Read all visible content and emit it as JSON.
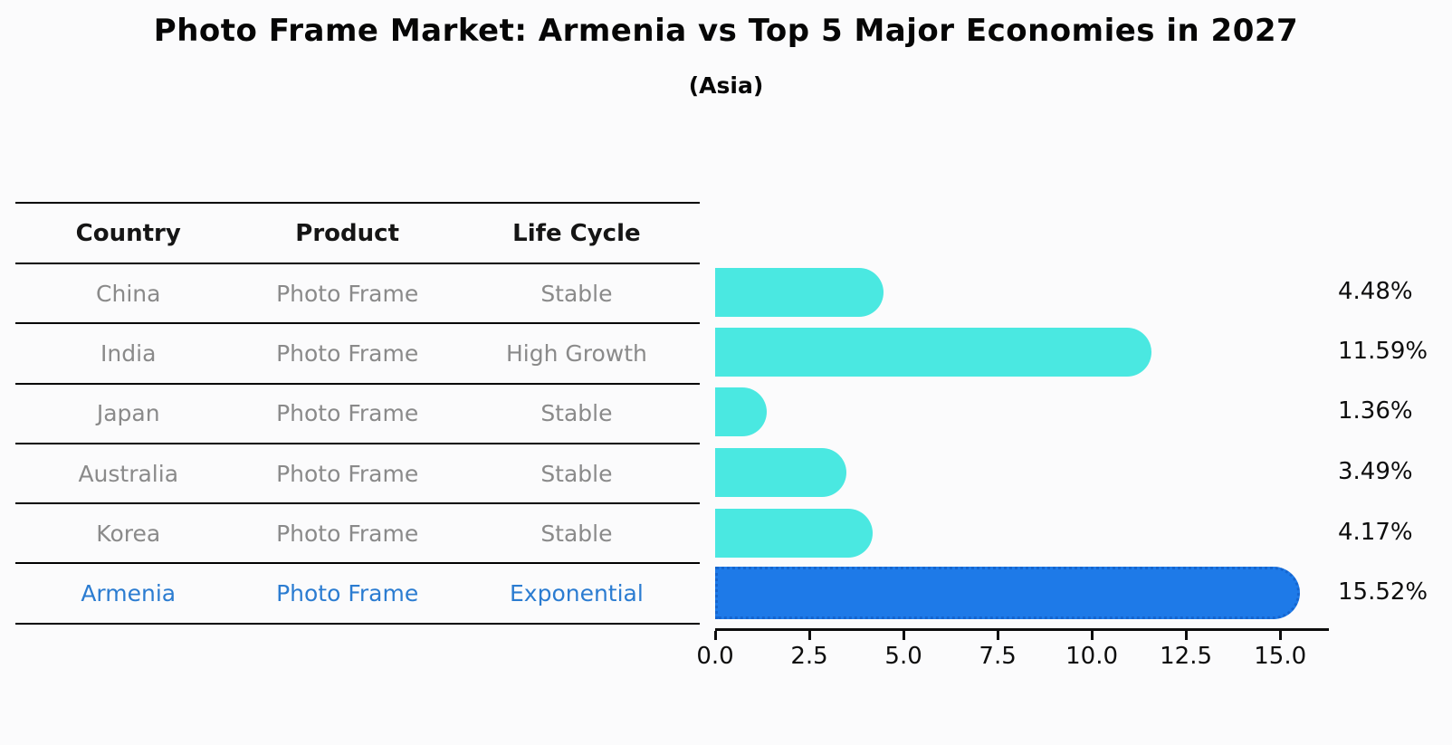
{
  "title": "Photo Frame Market: Armenia vs Top 5 Major Economies in 2027",
  "subtitle": "(Asia)",
  "table": {
    "headers": [
      "Country",
      "Product",
      "Life Cycle"
    ],
    "rows": [
      {
        "country": "China",
        "product": "Photo Frame",
        "life_cycle": "Stable"
      },
      {
        "country": "India",
        "product": "Photo Frame",
        "life_cycle": "High Growth"
      },
      {
        "country": "Japan",
        "product": "Photo Frame",
        "life_cycle": "Stable"
      },
      {
        "country": "Australia",
        "product": "Photo Frame",
        "life_cycle": "Stable"
      },
      {
        "country": "Korea",
        "product": "Photo Frame",
        "life_cycle": "Stable"
      },
      {
        "country": "Armenia",
        "product": "Photo Frame",
        "life_cycle": "Exponential"
      }
    ]
  },
  "chart_data": {
    "type": "bar",
    "orientation": "horizontal",
    "categories": [
      "China",
      "India",
      "Japan",
      "Australia",
      "Korea",
      "Armenia"
    ],
    "values": [
      4.48,
      11.59,
      1.36,
      3.49,
      4.17,
      15.52
    ],
    "value_labels": [
      "4.48%",
      "11.59%",
      "1.36%",
      "3.49%",
      "4.17%",
      "15.52%"
    ],
    "x_ticks": [
      "0.0",
      "2.5",
      "5.0",
      "7.5",
      "10.0",
      "12.5",
      "15.0"
    ],
    "xlim": [
      0,
      16.27
    ],
    "grid": false,
    "legend": false,
    "highlight_index": 5,
    "colors": {
      "bar": "#4ae8e1",
      "highlight_bar": "#1e7ae8",
      "highlight_border": "#1565cf",
      "highlight_text": "#2b7cd1",
      "label_text": "#0d0d0d"
    }
  }
}
